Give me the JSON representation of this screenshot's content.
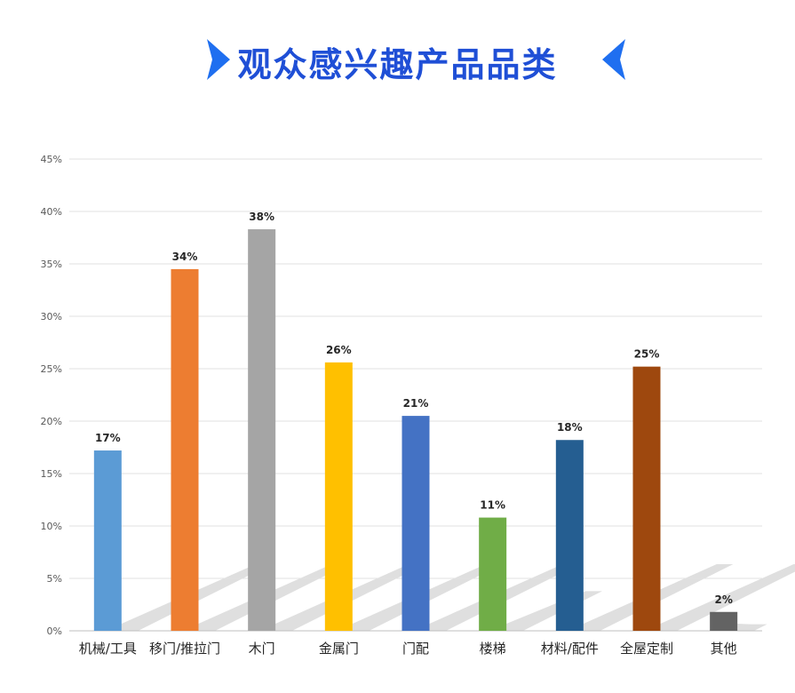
{
  "chart_data": {
    "type": "bar",
    "title": "观众感兴趣产品品类",
    "categories": [
      "机械/工具",
      "移门/推拉门",
      "木门",
      "金属门",
      "门配",
      "楼梯",
      "材料/配件",
      "全屋定制",
      "其他"
    ],
    "values": [
      17,
      34,
      38,
      26,
      21,
      11,
      18,
      25,
      2
    ],
    "bar_heights": [
      17.2,
      34.5,
      38.3,
      25.6,
      20.5,
      10.8,
      18.2,
      25.2,
      1.8
    ],
    "data_labels": [
      "17%",
      "34%",
      "38%",
      "26%",
      "21%",
      "11%",
      "18%",
      "25%",
      "2%"
    ],
    "unit": "%",
    "ylim": [
      0,
      45
    ],
    "yticks": [
      "0%",
      "5%",
      "10%",
      "15%",
      "20%",
      "25%",
      "30%",
      "35%",
      "40%",
      "45%"
    ],
    "grid": true,
    "legend": "none",
    "colors": [
      "#5b9bd5",
      "#ed7d31",
      "#a5a5a5",
      "#ffc000",
      "#4472c4",
      "#70ad47",
      "#255e91",
      "#9e480e",
      "#636363"
    ],
    "title_color": "#1f4fd6",
    "accent_color": "#1f6ff0"
  }
}
